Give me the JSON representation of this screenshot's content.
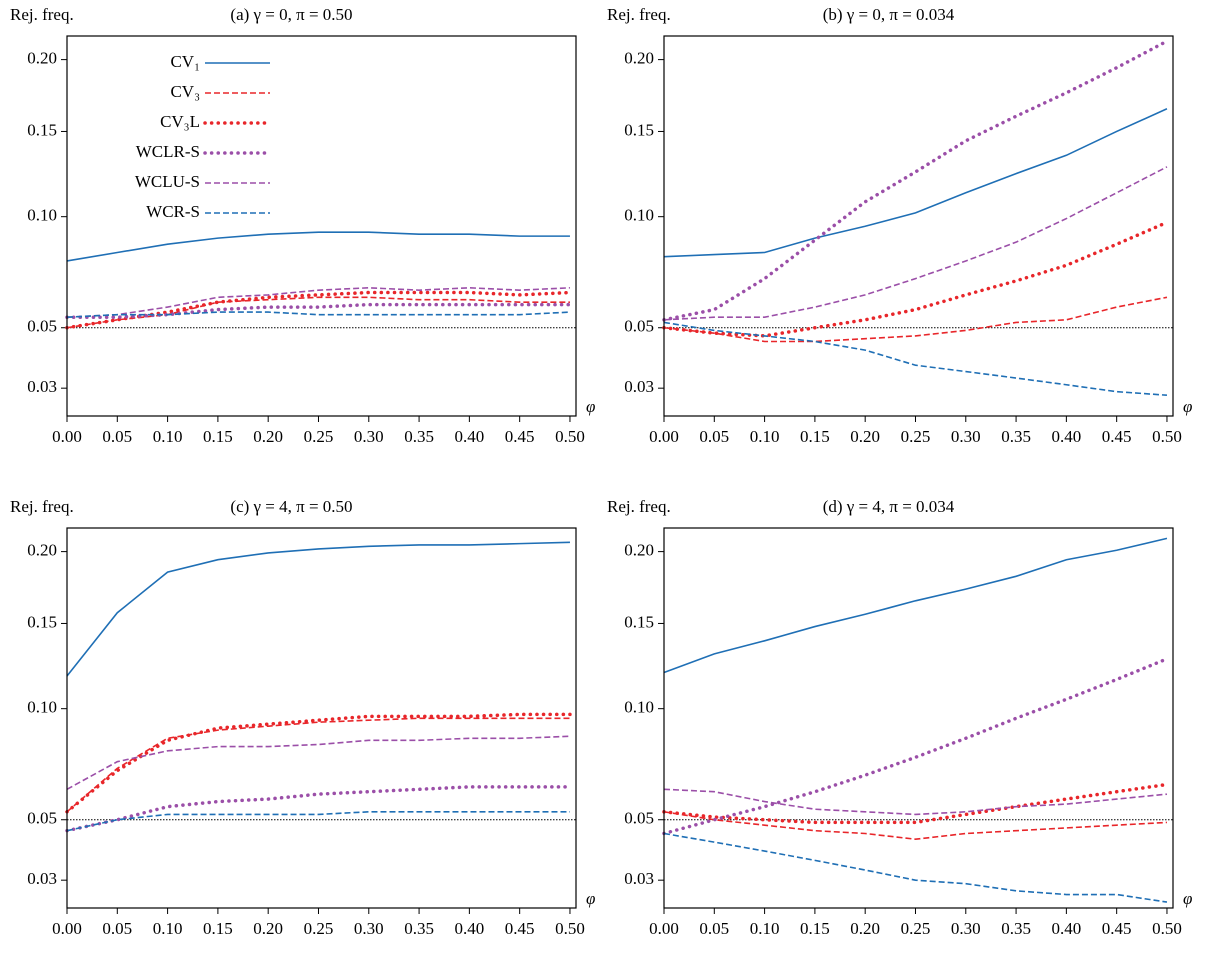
{
  "chart_data": [
    {
      "type": "line",
      "title": "(a) γ = 0, π = 0.50",
      "ylabel": "Rej. freq.",
      "xlabel": "φ",
      "yscale": "sqrt",
      "legend": "upper left",
      "hline": 0.05,
      "x": [
        0,
        0.05,
        0.1,
        0.15,
        0.2,
        0.25,
        0.3,
        0.35,
        0.4,
        0.45,
        0.5
      ],
      "xlim": [
        0,
        0.506
      ],
      "ylim": [
        0.0225,
        0.218
      ],
      "xticks": [
        {
          "value": 0,
          "label": "0.00"
        },
        {
          "value": 0.05,
          "label": "0.05"
        },
        {
          "value": 0.1,
          "label": "0.10"
        },
        {
          "value": 0.15,
          "label": "0.15"
        },
        {
          "value": 0.2,
          "label": "0.20"
        },
        {
          "value": 0.25,
          "label": "0.25"
        },
        {
          "value": 0.3,
          "label": "0.30"
        },
        {
          "value": 0.35,
          "label": "0.35"
        },
        {
          "value": 0.4,
          "label": "0.40"
        },
        {
          "value": 0.45,
          "label": "0.45"
        },
        {
          "value": 0.5,
          "label": "0.50"
        }
      ],
      "yticks": [
        0.03,
        0.05,
        {
          "value": 0.1,
          "label": "0.10"
        },
        0.15,
        {
          "value": 0.2,
          "label": "0.20"
        }
      ],
      "series": [
        {
          "name": "CV₁",
          "color": "#1f6fb5",
          "style": "solid",
          "values": [
            0.078,
            0.082,
            0.086,
            0.089,
            0.091,
            0.092,
            0.092,
            0.091,
            0.091,
            0.09,
            0.09
          ]
        },
        {
          "name": "CV₃",
          "color": "#e8262a",
          "style": "dashed",
          "values": [
            0.05,
            0.053,
            0.055,
            0.06,
            0.061,
            0.062,
            0.062,
            0.061,
            0.061,
            0.06,
            0.06
          ]
        },
        {
          "name": "CV₃L",
          "color": "#e8262a",
          "style": "dotted",
          "values": [
            0.05,
            0.053,
            0.056,
            0.06,
            0.062,
            0.063,
            0.064,
            0.064,
            0.064,
            0.063,
            0.064
          ]
        },
        {
          "name": "WCLR-S",
          "color": "#9b4fa8",
          "style": "dotted",
          "values": [
            0.054,
            0.054,
            0.055,
            0.057,
            0.058,
            0.058,
            0.059,
            0.059,
            0.059,
            0.059,
            0.059
          ]
        },
        {
          "name": "WCLU-S",
          "color": "#9b4fa8",
          "style": "dashed",
          "values": [
            0.054,
            0.055,
            0.058,
            0.062,
            0.063,
            0.065,
            0.066,
            0.065,
            0.066,
            0.065,
            0.066
          ]
        },
        {
          "name": "WCR-S",
          "color": "#1f6fb5",
          "style": "dashed",
          "values": [
            0.054,
            0.055,
            0.055,
            0.056,
            0.056,
            0.055,
            0.055,
            0.055,
            0.055,
            0.055,
            0.056
          ]
        }
      ]
    },
    {
      "type": "line",
      "title": "(b) γ = 0, π = 0.034",
      "ylabel": "Rej. freq.",
      "xlabel": "φ",
      "yscale": "sqrt",
      "hline": 0.05,
      "x": [
        0,
        0.05,
        0.1,
        0.15,
        0.2,
        0.25,
        0.3,
        0.35,
        0.4,
        0.45,
        0.5
      ],
      "xlim": [
        0,
        0.506
      ],
      "ylim": [
        0.0225,
        0.218
      ],
      "xticks": [
        {
          "value": 0,
          "label": "0.00"
        },
        {
          "value": 0.05,
          "label": "0.05"
        },
        {
          "value": 0.1,
          "label": "0.10"
        },
        {
          "value": 0.15,
          "label": "0.15"
        },
        {
          "value": 0.2,
          "label": "0.20"
        },
        {
          "value": 0.25,
          "label": "0.25"
        },
        {
          "value": 0.3,
          "label": "0.30"
        },
        {
          "value": 0.35,
          "label": "0.35"
        },
        {
          "value": 0.4,
          "label": "0.40"
        },
        {
          "value": 0.45,
          "label": "0.45"
        },
        {
          "value": 0.5,
          "label": "0.50"
        }
      ],
      "yticks": [
        0.03,
        0.05,
        {
          "value": 0.1,
          "label": "0.10"
        },
        0.15,
        {
          "value": 0.2,
          "label": "0.20"
        }
      ],
      "series": [
        {
          "name": "CV₁",
          "color": "#1f6fb5",
          "style": "solid",
          "values": [
            0.08,
            0.081,
            0.082,
            0.089,
            0.095,
            0.102,
            0.113,
            0.124,
            0.135,
            0.15,
            0.165
          ]
        },
        {
          "name": "CV₃",
          "color": "#e8262a",
          "style": "dashed",
          "values": [
            0.05,
            0.048,
            0.045,
            0.045,
            0.046,
            0.047,
            0.049,
            0.052,
            0.053,
            0.058,
            0.062
          ]
        },
        {
          "name": "CV₃L",
          "color": "#e8262a",
          "style": "dotted",
          "values": [
            0.05,
            0.048,
            0.047,
            0.05,
            0.053,
            0.057,
            0.063,
            0.069,
            0.076,
            0.086,
            0.097
          ]
        },
        {
          "name": "WCLR-S",
          "color": "#9b4fa8",
          "style": "dotted",
          "values": [
            0.053,
            0.057,
            0.07,
            0.088,
            0.108,
            0.125,
            0.144,
            0.16,
            0.176,
            0.194,
            0.214
          ]
        },
        {
          "name": "WCLU-S",
          "color": "#9b4fa8",
          "style": "dashed",
          "values": [
            0.053,
            0.054,
            0.054,
            0.058,
            0.063,
            0.07,
            0.078,
            0.087,
            0.099,
            0.113,
            0.128
          ]
        },
        {
          "name": "WCR-S",
          "color": "#1f6fb5",
          "style": "dashed",
          "values": [
            0.052,
            0.049,
            0.047,
            0.045,
            0.042,
            0.037,
            0.035,
            0.033,
            0.031,
            0.029,
            0.028
          ]
        }
      ]
    },
    {
      "type": "line",
      "title": "(c) γ = 4, π = 0.50",
      "ylabel": "Rej. freq.",
      "xlabel": "φ",
      "yscale": "sqrt",
      "hline": 0.05,
      "x": [
        0,
        0.05,
        0.1,
        0.15,
        0.2,
        0.25,
        0.3,
        0.35,
        0.4,
        0.45,
        0.5
      ],
      "xlim": [
        0,
        0.506
      ],
      "ylim": [
        0.0225,
        0.218
      ],
      "xticks": [
        {
          "value": 0,
          "label": "0.00"
        },
        {
          "value": 0.05,
          "label": "0.05"
        },
        {
          "value": 0.1,
          "label": "0.10"
        },
        {
          "value": 0.15,
          "label": "0.15"
        },
        {
          "value": 0.2,
          "label": "0.20"
        },
        {
          "value": 0.25,
          "label": "0.25"
        },
        {
          "value": 0.3,
          "label": "0.30"
        },
        {
          "value": 0.35,
          "label": "0.35"
        },
        {
          "value": 0.4,
          "label": "0.40"
        },
        {
          "value": 0.45,
          "label": "0.45"
        },
        {
          "value": 0.5,
          "label": "0.50"
        }
      ],
      "yticks": [
        0.03,
        0.05,
        {
          "value": 0.1,
          "label": "0.10"
        },
        0.15,
        {
          "value": 0.2,
          "label": "0.20"
        }
      ],
      "series": [
        {
          "name": "CV₁",
          "color": "#1f6fb5",
          "style": "solid",
          "values": [
            0.118,
            0.157,
            0.185,
            0.194,
            0.199,
            0.202,
            0.204,
            0.205,
            0.205,
            0.206,
            0.207
          ]
        },
        {
          "name": "CV₃",
          "color": "#e8262a",
          "style": "dashed",
          "values": [
            0.053,
            0.071,
            0.085,
            0.089,
            0.091,
            0.093,
            0.094,
            0.095,
            0.095,
            0.095,
            0.095
          ]
        },
        {
          "name": "CV₃L",
          "color": "#e8262a",
          "style": "dotted",
          "values": [
            0.053,
            0.07,
            0.084,
            0.09,
            0.092,
            0.094,
            0.096,
            0.096,
            0.096,
            0.097,
            0.097
          ]
        },
        {
          "name": "WCLR-S",
          "color": "#9b4fa8",
          "style": "dotted",
          "values": [
            0.046,
            0.05,
            0.055,
            0.057,
            0.058,
            0.06,
            0.061,
            0.062,
            0.063,
            0.063,
            0.063
          ]
        },
        {
          "name": "WCLU-S",
          "color": "#9b4fa8",
          "style": "dashed",
          "values": [
            0.062,
            0.074,
            0.079,
            0.081,
            0.081,
            0.082,
            0.084,
            0.084,
            0.085,
            0.085,
            0.086
          ]
        },
        {
          "name": "WCR-S",
          "color": "#1f6fb5",
          "style": "dashed",
          "values": [
            0.046,
            0.05,
            0.052,
            0.052,
            0.052,
            0.052,
            0.053,
            0.053,
            0.053,
            0.053,
            0.053
          ]
        }
      ]
    },
    {
      "type": "line",
      "title": "(d) γ = 4, π = 0.034",
      "ylabel": "Rej. freq.",
      "xlabel": "φ",
      "yscale": "sqrt",
      "hline": 0.05,
      "x": [
        0,
        0.05,
        0.1,
        0.15,
        0.2,
        0.25,
        0.3,
        0.35,
        0.4,
        0.45,
        0.5
      ],
      "xlim": [
        0,
        0.506
      ],
      "ylim": [
        0.0225,
        0.218
      ],
      "xticks": [
        {
          "value": 0,
          "label": "0.00"
        },
        {
          "value": 0.05,
          "label": "0.05"
        },
        {
          "value": 0.1,
          "label": "0.10"
        },
        {
          "value": 0.15,
          "label": "0.15"
        },
        {
          "value": 0.2,
          "label": "0.20"
        },
        {
          "value": 0.25,
          "label": "0.25"
        },
        {
          "value": 0.3,
          "label": "0.30"
        },
        {
          "value": 0.35,
          "label": "0.35"
        },
        {
          "value": 0.4,
          "label": "0.40"
        },
        {
          "value": 0.45,
          "label": "0.45"
        },
        {
          "value": 0.5,
          "label": "0.50"
        }
      ],
      "yticks": [
        0.03,
        0.05,
        {
          "value": 0.1,
          "label": "0.10"
        },
        0.15,
        {
          "value": 0.2,
          "label": "0.20"
        }
      ],
      "series": [
        {
          "name": "CV₁",
          "color": "#1f6fb5",
          "style": "solid",
          "values": [
            0.12,
            0.131,
            0.139,
            0.148,
            0.156,
            0.165,
            0.173,
            0.182,
            0.194,
            0.201,
            0.21
          ]
        },
        {
          "name": "CV₃",
          "color": "#e8262a",
          "style": "dashed",
          "values": [
            0.053,
            0.05,
            0.048,
            0.046,
            0.045,
            0.043,
            0.045,
            0.046,
            0.047,
            0.048,
            0.049
          ]
        },
        {
          "name": "CV₃L",
          "color": "#e8262a",
          "style": "dotted",
          "values": [
            0.053,
            0.051,
            0.05,
            0.049,
            0.049,
            0.049,
            0.052,
            0.055,
            0.058,
            0.061,
            0.064
          ]
        },
        {
          "name": "WCLR-S",
          "color": "#9b4fa8",
          "style": "dotted",
          "values": [
            0.045,
            0.05,
            0.055,
            0.061,
            0.068,
            0.076,
            0.085,
            0.095,
            0.105,
            0.116,
            0.128
          ]
        },
        {
          "name": "WCLU-S",
          "color": "#9b4fa8",
          "style": "dashed",
          "values": [
            0.062,
            0.061,
            0.057,
            0.054,
            0.053,
            0.052,
            0.053,
            0.055,
            0.056,
            0.058,
            0.06
          ]
        },
        {
          "name": "WCR-S",
          "color": "#1f6fb5",
          "style": "dashed",
          "values": [
            0.045,
            0.042,
            0.039,
            0.036,
            0.033,
            0.03,
            0.029,
            0.027,
            0.026,
            0.026,
            0.024
          ]
        }
      ]
    }
  ]
}
